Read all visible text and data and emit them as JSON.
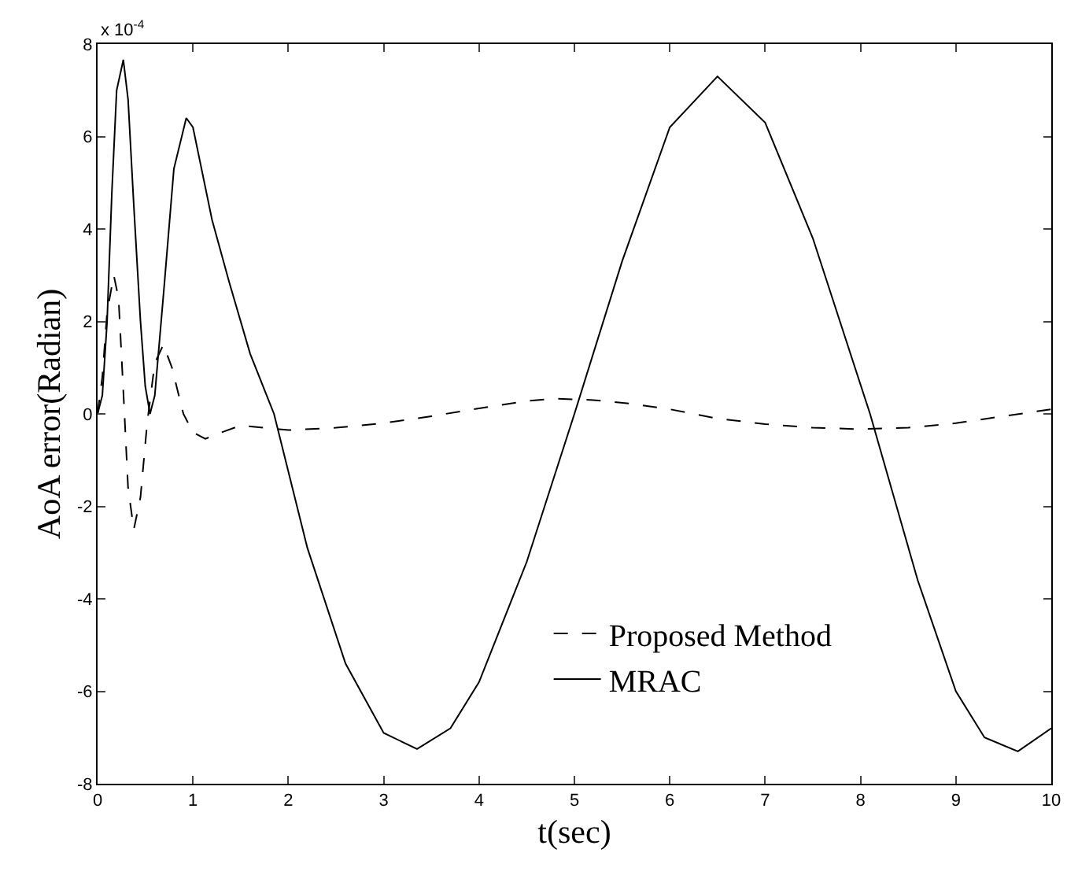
{
  "chart_data": {
    "type": "line",
    "xlabel": "t(sec)",
    "ylabel": "AoA error(Radian)",
    "annotations": [
      "x 10$^{-4}$"
    ],
    "xlim": [
      0,
      10
    ],
    "xticks": [
      0,
      1,
      2,
      3,
      4,
      5,
      6,
      7,
      8,
      9,
      10
    ],
    "ylim": [
      -8,
      8
    ],
    "yticks": [
      -8,
      -6,
      -4,
      -2,
      0,
      2,
      4,
      6,
      8
    ],
    "grid": false,
    "legend": "bottom",
    "marker": "none",
    "series": [
      {
        "name": "Proposed Method",
        "color": "#000000",
        "line_style": "dashed",
        "x": [
          0,
          0.05,
          0.1,
          0.17,
          0.22,
          0.27,
          0.32,
          0.38,
          0.45,
          0.52,
          0.6,
          0.69,
          0.78,
          0.9,
          1.0,
          1.13,
          1.3,
          1.5,
          1.75,
          2.0,
          2.5,
          3.0,
          3.5,
          4.0,
          4.5,
          4.8,
          5.2,
          5.6,
          6.0,
          6.5,
          7.0,
          7.5,
          8.0,
          8.5,
          9.0,
          9.5,
          10
        ],
        "values": [
          0,
          0.8,
          2.2,
          3.0,
          2.5,
          0.5,
          -1.6,
          -2.5,
          -1.8,
          -0.2,
          1.1,
          1.5,
          1.0,
          0.0,
          -0.4,
          -0.54,
          -0.4,
          -0.25,
          -0.3,
          -0.35,
          -0.3,
          -0.2,
          -0.05,
          0.12,
          0.28,
          0.33,
          0.3,
          0.22,
          0.1,
          -0.1,
          -0.22,
          -0.3,
          -0.33,
          -0.3,
          -0.2,
          -0.05,
          0.1
        ]
      },
      {
        "name": "MRAC",
        "color": "#000000",
        "line_style": "solid",
        "x": [
          0,
          0.05,
          0.1,
          0.15,
          0.2,
          0.27,
          0.32,
          0.38,
          0.45,
          0.5,
          0.55,
          0.6,
          0.7,
          0.8,
          0.93,
          1.0,
          1.1,
          1.2,
          1.38,
          1.6,
          1.85,
          2.2,
          2.6,
          3.0,
          3.35,
          3.7,
          4.0,
          4.5,
          5.0,
          5.5,
          6.0,
          6.5,
          7.0,
          7.5,
          8.1,
          8.6,
          9.0,
          9.3,
          9.65,
          10
        ],
        "values": [
          0,
          0.4,
          2.0,
          4.8,
          7.0,
          7.66,
          6.8,
          4.5,
          2.0,
          0.6,
          0.0,
          0.4,
          2.8,
          5.3,
          6.4,
          6.2,
          5.2,
          4.2,
          2.85,
          1.3,
          0.0,
          -2.9,
          -5.4,
          -6.9,
          -7.25,
          -6.8,
          -5.8,
          -3.2,
          0.0,
          3.3,
          6.2,
          7.3,
          6.3,
          3.8,
          0.0,
          -3.6,
          -6.0,
          -7.0,
          -7.3,
          -6.8
        ]
      }
    ]
  }
}
